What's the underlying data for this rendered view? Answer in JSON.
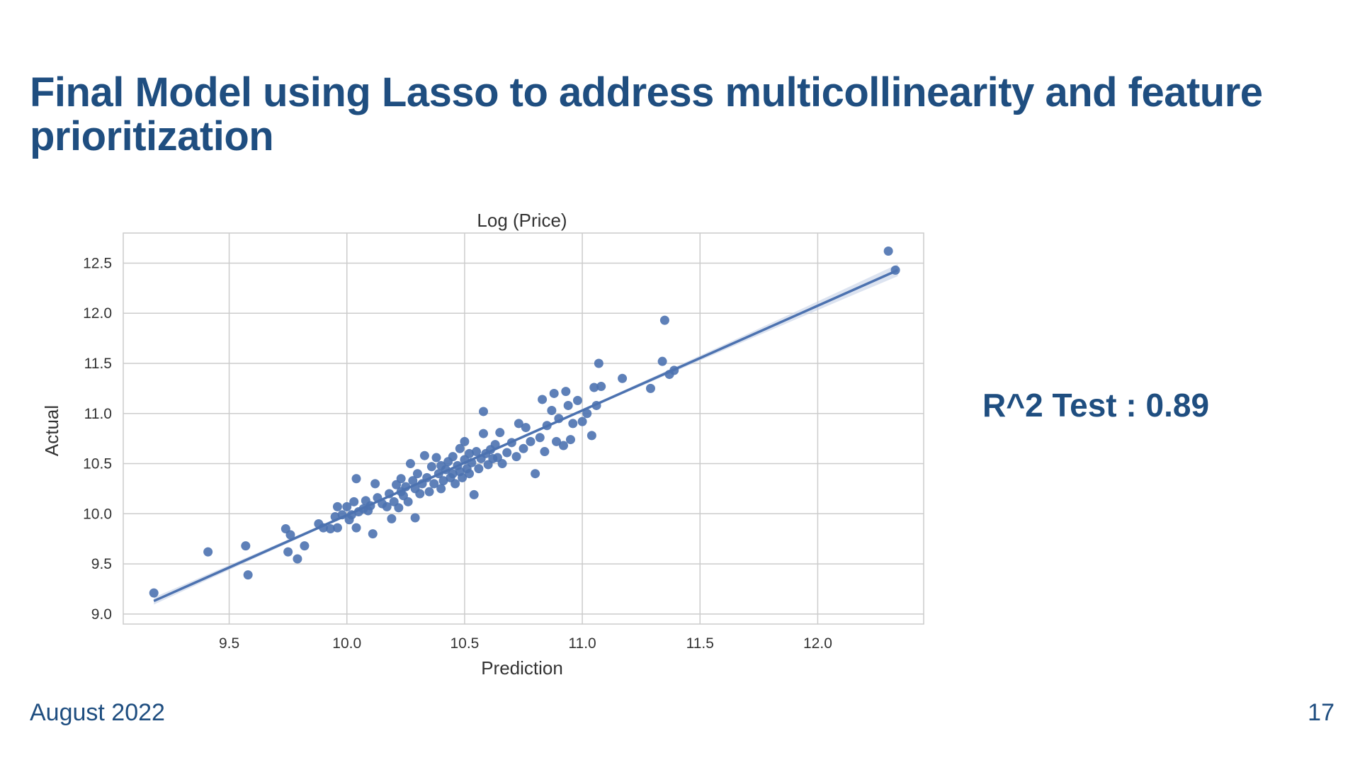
{
  "slide": {
    "title": "Final Model using Lasso to address multicollinearity and feature prioritization",
    "metric": "R^2 Test : 0.89",
    "footer_date": "August 2022",
    "page_number": "17"
  },
  "colors": {
    "title": "#1f4e80",
    "points": "#4c72b0",
    "regression_line": "#4c72b0",
    "confidence_band": "#c5d0e6",
    "grid": "#cccccc"
  },
  "chart_data": {
    "type": "scatter",
    "title": "Log (Price)",
    "xlabel": "Prediction",
    "ylabel": "Actual",
    "xlim": [
      9.05,
      12.45
    ],
    "ylim": [
      8.9,
      12.8
    ],
    "xticks": [
      9.5,
      10.0,
      10.5,
      11.0,
      11.5,
      12.0
    ],
    "yticks": [
      9.0,
      9.5,
      10.0,
      10.5,
      11.0,
      11.5,
      12.0,
      12.5
    ],
    "tick_labels_x": [
      "9.5",
      "10.0",
      "10.5",
      "11.0",
      "11.5",
      "12.0"
    ],
    "tick_labels_y": [
      "9.0",
      "9.5",
      "10.0",
      "10.5",
      "11.0",
      "11.5",
      "12.0",
      "12.5"
    ],
    "grid": true,
    "regression": {
      "x": [
        9.18,
        12.34
      ],
      "y": [
        9.13,
        12.43
      ],
      "ci_halfwidth_at_mean": 0.01,
      "ci_halfwidth_at_ends": 0.06
    },
    "points": [
      [
        9.18,
        9.21
      ],
      [
        9.41,
        9.62
      ],
      [
        9.57,
        9.68
      ],
      [
        9.58,
        9.39
      ],
      [
        9.74,
        9.85
      ],
      [
        9.75,
        9.62
      ],
      [
        9.76,
        9.79
      ],
      [
        9.79,
        9.55
      ],
      [
        9.82,
        9.68
      ],
      [
        9.88,
        9.9
      ],
      [
        9.9,
        9.86
      ],
      [
        9.93,
        9.85
      ],
      [
        9.95,
        9.97
      ],
      [
        9.96,
        9.86
      ],
      [
        9.96,
        10.07
      ],
      [
        9.98,
        9.99
      ],
      [
        10.0,
        10.07
      ],
      [
        10.01,
        9.94
      ],
      [
        10.02,
        9.99
      ],
      [
        10.03,
        10.12
      ],
      [
        10.04,
        10.35
      ],
      [
        10.04,
        9.86
      ],
      [
        10.05,
        10.02
      ],
      [
        10.07,
        10.05
      ],
      [
        10.08,
        10.13
      ],
      [
        10.09,
        10.03
      ],
      [
        10.1,
        10.08
      ],
      [
        10.11,
        9.8
      ],
      [
        10.12,
        10.3
      ],
      [
        10.13,
        10.16
      ],
      [
        10.15,
        10.1
      ],
      [
        10.17,
        10.07
      ],
      [
        10.18,
        10.2
      ],
      [
        10.19,
        9.95
      ],
      [
        10.2,
        10.12
      ],
      [
        10.21,
        10.29
      ],
      [
        10.22,
        10.06
      ],
      [
        10.23,
        10.22
      ],
      [
        10.23,
        10.35
      ],
      [
        10.24,
        10.18
      ],
      [
        10.25,
        10.27
      ],
      [
        10.26,
        10.12
      ],
      [
        10.27,
        10.5
      ],
      [
        10.28,
        10.33
      ],
      [
        10.29,
        9.96
      ],
      [
        10.29,
        10.25
      ],
      [
        10.3,
        10.4
      ],
      [
        10.31,
        10.2
      ],
      [
        10.32,
        10.3
      ],
      [
        10.33,
        10.58
      ],
      [
        10.34,
        10.36
      ],
      [
        10.35,
        10.22
      ],
      [
        10.36,
        10.47
      ],
      [
        10.37,
        10.3
      ],
      [
        10.38,
        10.56
      ],
      [
        10.39,
        10.4
      ],
      [
        10.4,
        10.25
      ],
      [
        10.4,
        10.48
      ],
      [
        10.41,
        10.33
      ],
      [
        10.42,
        10.44
      ],
      [
        10.43,
        10.52
      ],
      [
        10.44,
        10.36
      ],
      [
        10.45,
        10.4
      ],
      [
        10.45,
        10.57
      ],
      [
        10.46,
        10.3
      ],
      [
        10.47,
        10.48
      ],
      [
        10.48,
        10.65
      ],
      [
        10.48,
        10.42
      ],
      [
        10.49,
        10.36
      ],
      [
        10.5,
        10.54
      ],
      [
        10.5,
        10.72
      ],
      [
        10.51,
        10.45
      ],
      [
        10.52,
        10.6
      ],
      [
        10.52,
        10.4
      ],
      [
        10.53,
        10.51
      ],
      [
        10.54,
        10.19
      ],
      [
        10.55,
        10.62
      ],
      [
        10.56,
        10.45
      ],
      [
        10.57,
        10.55
      ],
      [
        10.58,
        11.02
      ],
      [
        10.58,
        10.8
      ],
      [
        10.59,
        10.6
      ],
      [
        10.6,
        10.49
      ],
      [
        10.61,
        10.64
      ],
      [
        10.62,
        10.55
      ],
      [
        10.63,
        10.69
      ],
      [
        10.64,
        10.56
      ],
      [
        10.65,
        10.81
      ],
      [
        10.66,
        10.5
      ],
      [
        10.68,
        10.61
      ],
      [
        10.7,
        10.71
      ],
      [
        10.72,
        10.57
      ],
      [
        10.73,
        10.9
      ],
      [
        10.75,
        10.65
      ],
      [
        10.76,
        10.86
      ],
      [
        10.78,
        10.72
      ],
      [
        10.8,
        10.4
      ],
      [
        10.82,
        10.76
      ],
      [
        10.83,
        11.14
      ],
      [
        10.84,
        10.62
      ],
      [
        10.85,
        10.88
      ],
      [
        10.87,
        11.03
      ],
      [
        10.88,
        11.2
      ],
      [
        10.89,
        10.72
      ],
      [
        10.9,
        10.95
      ],
      [
        10.92,
        10.68
      ],
      [
        10.93,
        11.22
      ],
      [
        10.94,
        11.08
      ],
      [
        10.95,
        10.74
      ],
      [
        10.96,
        10.9
      ],
      [
        10.98,
        11.13
      ],
      [
        11.0,
        10.92
      ],
      [
        11.02,
        11.0
      ],
      [
        11.04,
        10.78
      ],
      [
        11.05,
        11.26
      ],
      [
        11.06,
        11.08
      ],
      [
        11.07,
        11.5
      ],
      [
        11.08,
        11.27
      ],
      [
        11.17,
        11.35
      ],
      [
        11.29,
        11.25
      ],
      [
        11.34,
        11.52
      ],
      [
        11.35,
        11.93
      ],
      [
        11.37,
        11.39
      ],
      [
        11.39,
        11.43
      ],
      [
        12.3,
        12.62
      ],
      [
        12.33,
        12.43
      ]
    ]
  }
}
